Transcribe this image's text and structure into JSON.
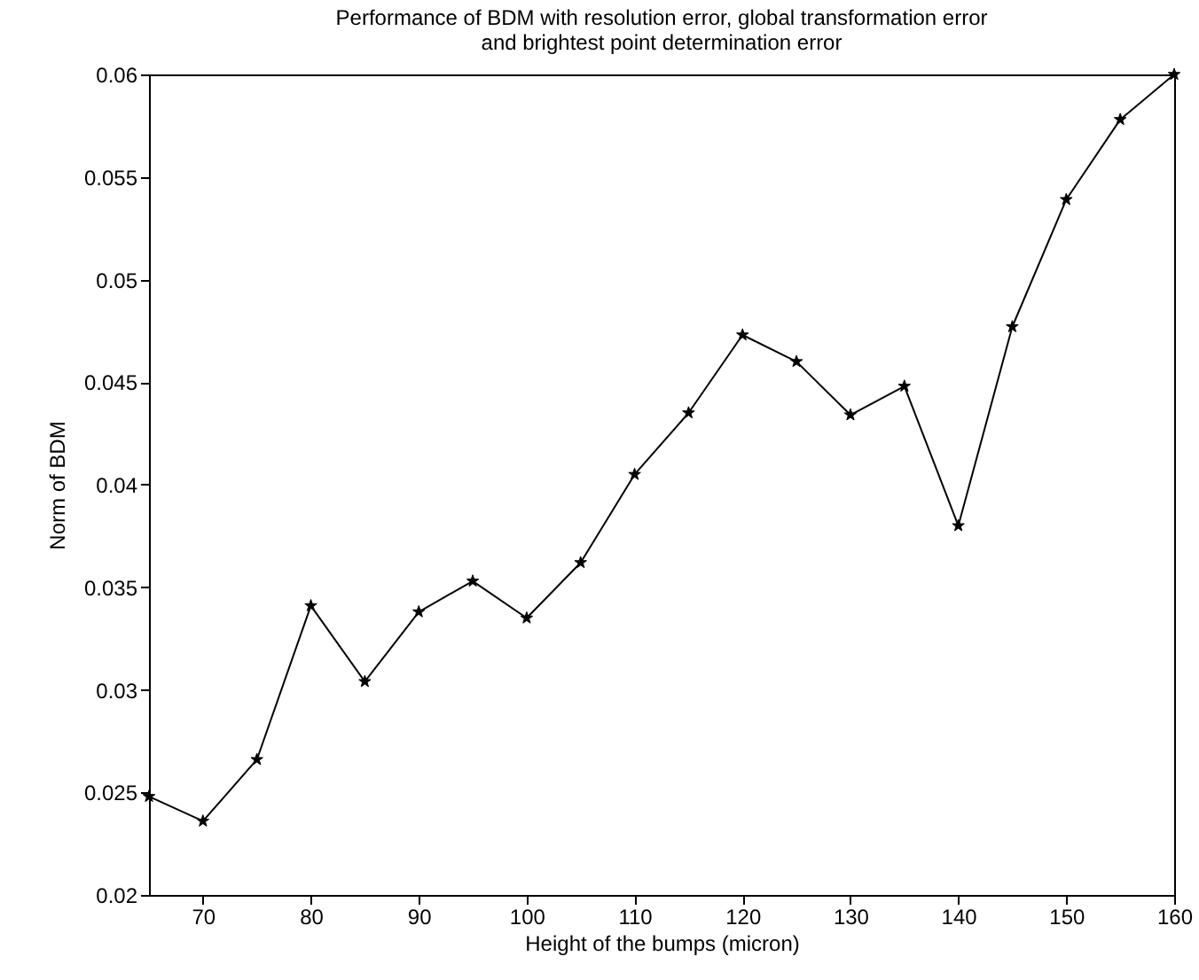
{
  "chart_data": {
    "type": "line",
    "title": "Performance of BDM with resolution error, global transformation error\nand brightest point determination error",
    "xlabel": "Height of the bumps (micron)",
    "ylabel": "Norm of BDM",
    "x": [
      65,
      70,
      75,
      80,
      85,
      90,
      95,
      100,
      105,
      110,
      115,
      120,
      125,
      130,
      135,
      140,
      145,
      150,
      155,
      160
    ],
    "series": [
      {
        "color": "#000000",
        "values": [
          0.0248,
          0.0236,
          0.0266,
          0.0341,
          0.0304,
          0.0338,
          0.0353,
          0.0335,
          0.0362,
          0.0405,
          0.0435,
          0.0473,
          0.046,
          0.0434,
          0.0448,
          0.038,
          0.0477,
          0.0539,
          0.0578,
          0.06
        ]
      }
    ],
    "xlim": [
      65,
      160
    ],
    "xticks": [
      70,
      80,
      90,
      100,
      110,
      120,
      130,
      140,
      150,
      160
    ],
    "ylim": [
      0.02,
      0.06
    ],
    "yticks": [
      0.02,
      0.025,
      0.03,
      0.035,
      0.04,
      0.045,
      0.05,
      0.055,
      0.06
    ],
    "grid": false,
    "marker": "star",
    "line_style": "solid"
  }
}
